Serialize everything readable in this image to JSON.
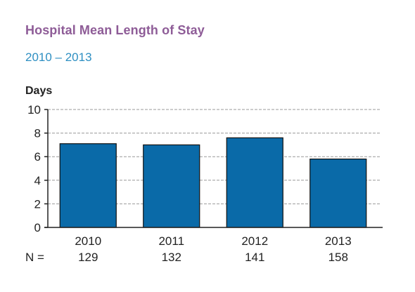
{
  "chart_data": {
    "type": "bar",
    "title": "Hospital Mean Length of Stay",
    "subtitle": "2010 – 2013",
    "ylabel": "Days",
    "xlabel": "",
    "ylim": [
      0,
      10
    ],
    "yticks": [
      0,
      2,
      4,
      6,
      8,
      10
    ],
    "grid": true,
    "categories": [
      "2010",
      "2011",
      "2012",
      "2013"
    ],
    "values": [
      7.1,
      7.0,
      7.6,
      5.8
    ],
    "n_label": "N =",
    "n_values": [
      "129",
      "132",
      "141",
      "158"
    ],
    "bar_color": "#0a6aa8"
  }
}
